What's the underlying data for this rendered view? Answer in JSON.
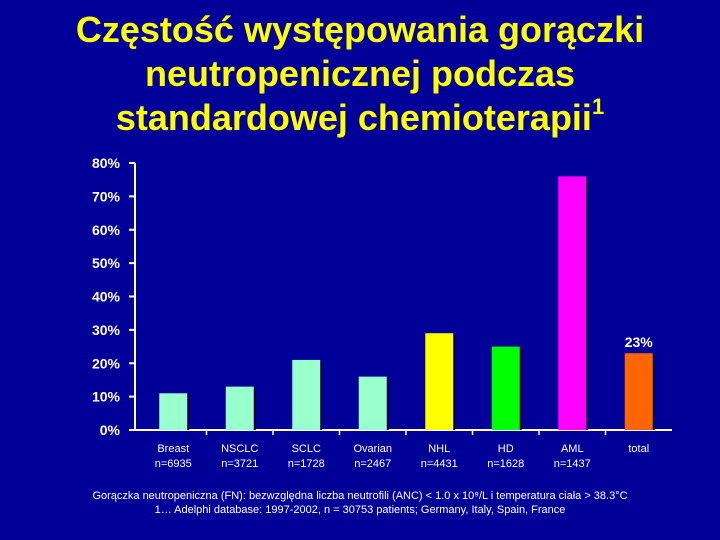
{
  "title": {
    "line1": "Częstość występowania gorączki",
    "line2": "neutropenicznej podczas",
    "line3": "standardowej chemioterapii",
    "superscript": "1"
  },
  "chart_data": {
    "type": "bar",
    "categories": [
      "Breast",
      "NSCLC",
      "SCLC",
      "Ovarian",
      "NHL",
      "HD",
      "AML",
      "total"
    ],
    "category_sublabels": [
      "n=6935",
      "n=3721",
      "n=1728",
      "n=2467",
      "n=4431",
      "n=1628",
      "n=1437",
      ""
    ],
    "values": [
      11,
      13,
      21,
      16,
      29,
      25,
      76,
      23
    ],
    "bar_colors": [
      "#99FFCC",
      "#99FFCC",
      "#99FFCC",
      "#99FFCC",
      "#FFFF00",
      "#00FF00",
      "#FF00FF",
      "#FF6600"
    ],
    "ylim": [
      0,
      80
    ],
    "yticks": [
      0,
      10,
      20,
      30,
      40,
      50,
      60,
      70,
      80
    ],
    "ytick_labels": [
      "0%",
      "10%",
      "20%",
      "30%",
      "40%",
      "50%",
      "60%",
      "70%",
      "80%"
    ],
    "data_labels": [
      "",
      "",
      "",
      "",
      "",
      "",
      "",
      "23%"
    ],
    "grid": false,
    "legend": "none"
  },
  "footnotes": {
    "line1": "Gorączka neutropeniczna (FN): bezwzględna liczba neutrofili (ANC) < 1.0 x 10⁹/L i temperatura ciała > 38.3°C",
    "line2": "1… Adelphi database: 1997-2002, n = 30753 patients; Germany, Italy, Spain, France"
  },
  "colors": {
    "background": "#000099",
    "title": "#FFFF00",
    "text": "#FFFFFF"
  }
}
